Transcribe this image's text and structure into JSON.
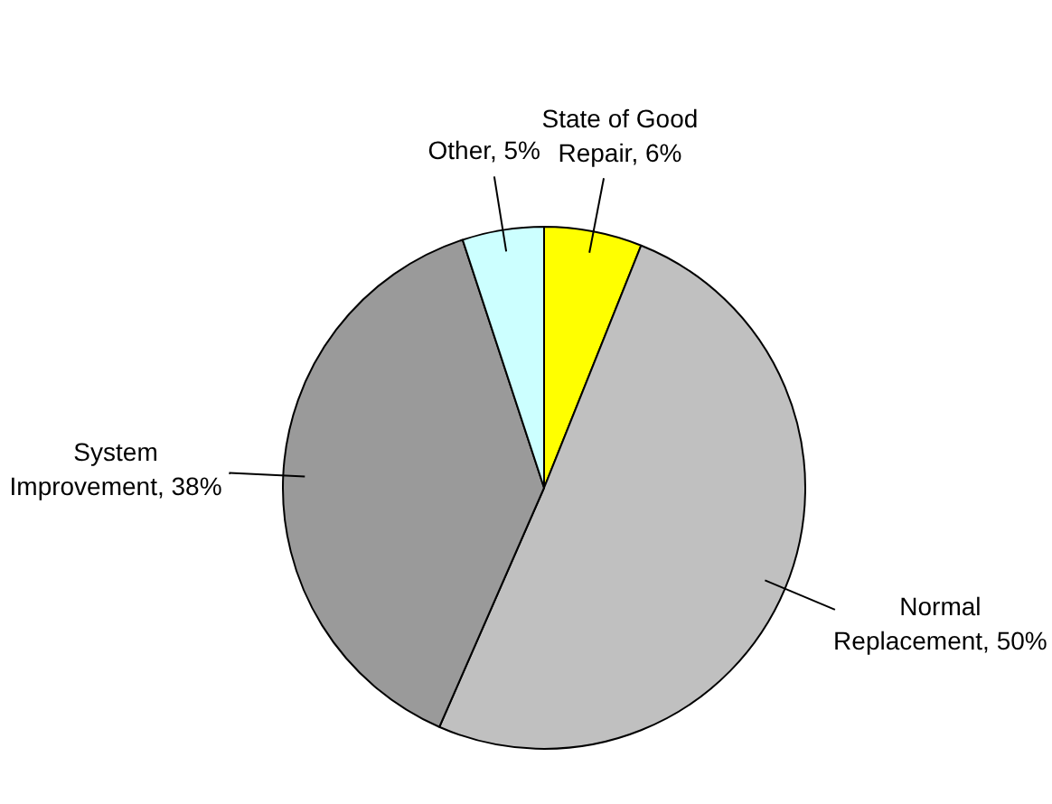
{
  "chart_data": {
    "type": "pie",
    "categories": [
      "State of Good Repair",
      "Normal Replacement",
      "System Improvement",
      "Other"
    ],
    "values": [
      6,
      50,
      38,
      5
    ],
    "colors": [
      "#ffff00",
      "#c0c0c0",
      "#9a9a9a",
      "#ccffff"
    ],
    "value_labels": [
      "6%",
      "50%",
      "38%",
      "5%"
    ],
    "legend": false
  }
}
